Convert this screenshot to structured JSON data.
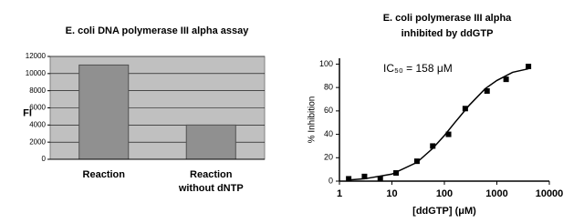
{
  "chart_data": [
    {
      "type": "bar",
      "title": [
        "E. coli DNA polymerase III alpha assay"
      ],
      "y_label": "FI",
      "categories": [
        [
          "Reaction"
        ],
        [
          "Reaction",
          "without dNTP"
        ]
      ],
      "values": [
        11000,
        4000
      ],
      "color": "#909090",
      "background": "#c0c0c0",
      "ylim": [
        0,
        12000
      ],
      "yticks": [
        0,
        2000,
        4000,
        6000,
        8000,
        10000,
        12000
      ],
      "grid": true
    },
    {
      "type": "scatter",
      "title": [
        "E. coli polymerase III alpha",
        "inhibited by ddGTP"
      ],
      "annotation": "IC₅₀ = 158 μM",
      "x_label": "[ddGTP] (μM)",
      "y_label": "% Inhibition",
      "log_x": true,
      "xlim": [
        1,
        10000
      ],
      "xticks": [
        1,
        10,
        100,
        1000,
        10000
      ],
      "ylim": [
        0,
        105
      ],
      "yticks": [
        0,
        20,
        40,
        60,
        80,
        100
      ],
      "grid": false,
      "series": [
        {
          "style": "markers",
          "color": "#000000",
          "x": [
            1.5,
            3,
            6,
            12,
            30,
            60,
            120,
            250,
            650,
            1500,
            4000
          ],
          "values": [
            2,
            4,
            2,
            7,
            17,
            30,
            40,
            62,
            77,
            87,
            98
          ]
        },
        {
          "style": "line",
          "color": "#000000",
          "x": [
            1.5,
            3,
            10,
            30,
            60,
            100,
            158,
            300,
            600,
            1000,
            2000,
            4000
          ],
          "values": [
            1,
            2,
            6,
            16,
            28,
            39,
            50,
            65,
            79,
            86,
            93,
            96
          ]
        }
      ]
    }
  ]
}
